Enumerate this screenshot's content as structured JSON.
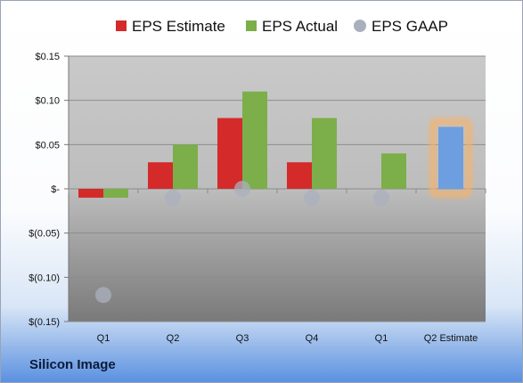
{
  "company": "Silicon Image",
  "colors": {
    "estimate": "#d42a2a",
    "actual": "#7cae4a",
    "gaap": "#a9b0bd",
    "q2_estimate": "#6d9ee0",
    "highlight": "#f6b26b"
  },
  "chart_data": {
    "type": "bar",
    "title": "",
    "xlabel": "",
    "ylabel": "",
    "ylim": [
      -0.15,
      0.15
    ],
    "yticks": [
      0.15,
      0.1,
      0.05,
      0,
      -0.05,
      -0.1,
      -0.15
    ],
    "ytick_labels": [
      "$0.15",
      "$0.10",
      "$0.05",
      "$-",
      "$(0.05)",
      "$(0.10)",
      "$(0.15)"
    ],
    "categories": [
      "Q1",
      "Q2",
      "Q3",
      "Q4",
      "Q1",
      "Q2 Estimate"
    ],
    "legend_position": "top",
    "grid": true,
    "series": [
      {
        "name": "EPS Estimate",
        "kind": "bar",
        "values": [
          -0.01,
          0.03,
          0.08,
          0.03,
          null,
          null
        ]
      },
      {
        "name": "EPS Actual",
        "kind": "bar",
        "values": [
          -0.01,
          0.05,
          0.11,
          0.08,
          0.04,
          0.07
        ]
      },
      {
        "name": "EPS GAAP",
        "kind": "marker",
        "values": [
          -0.12,
          -0.01,
          0.0,
          -0.01,
          -0.01,
          null
        ]
      }
    ],
    "highlighted_category": "Q2 Estimate"
  }
}
